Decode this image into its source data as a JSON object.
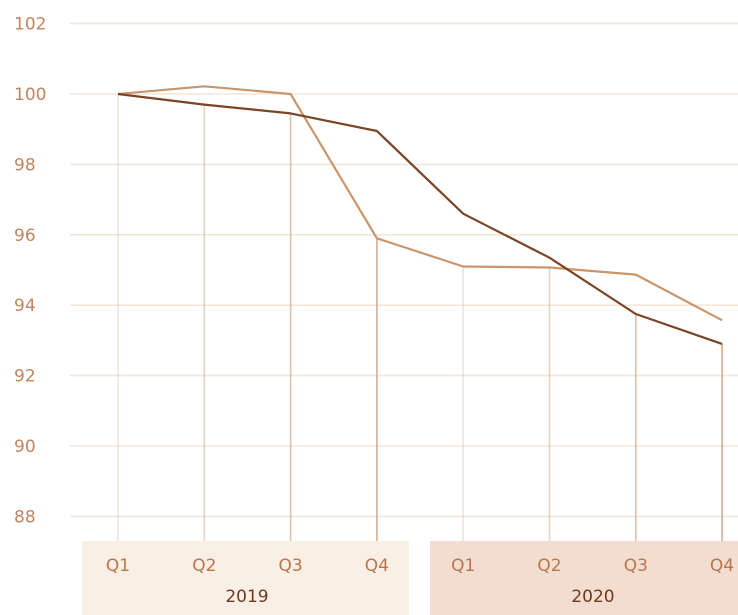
{
  "chart_data": {
    "type": "line",
    "title": "",
    "xlabel": "",
    "ylabel": "",
    "ylim": [
      87,
      102
    ],
    "yticks": [
      88,
      90,
      92,
      94,
      96,
      98,
      100,
      102
    ],
    "grid": true,
    "categories": [
      "Q1",
      "Q2",
      "Q3",
      "Q4",
      "Q1",
      "Q2",
      "Q3",
      "Q4"
    ],
    "groups": [
      {
        "label": "2019",
        "categories": [
          "Q1",
          "Q2",
          "Q3",
          "Q4"
        ]
      },
      {
        "label": "2020",
        "categories": [
          "Q1",
          "Q2",
          "Q3",
          "Q4"
        ]
      }
    ],
    "series": [
      {
        "color": "#7a4425",
        "values": [
          100.0,
          99.7,
          99.45,
          98.95,
          96.6,
          95.35,
          93.75,
          92.9
        ]
      },
      {
        "color": "#c9956c",
        "values": [
          100.0,
          100.22,
          100.0,
          95.9,
          95.1,
          95.07,
          94.87,
          93.57
        ]
      }
    ],
    "colors": {
      "grid": "#f6e6d8",
      "group_band_1": "#faefe4",
      "group_band_2": "#f3ddd1"
    }
  }
}
